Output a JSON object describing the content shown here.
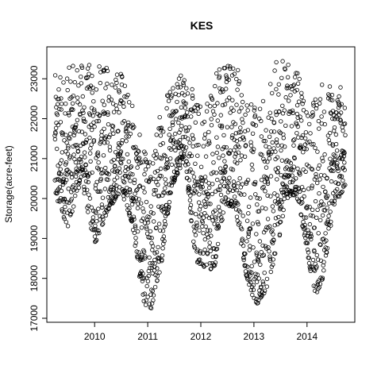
{
  "chart_data": {
    "type": "scatter",
    "title": "KES",
    "xlabel": "",
    "ylabel": "Storage(acre-feet)",
    "xlim": [
      2009.1,
      2014.9
    ],
    "ylim": [
      16900,
      23800
    ],
    "x_ticks": [
      2010,
      2011,
      2012,
      2013,
      2014
    ],
    "x_tick_labels": [
      "2010",
      "2011",
      "2012",
      "2013",
      "2014"
    ],
    "y_ticks": [
      17000,
      18000,
      19000,
      20000,
      21000,
      22000,
      23000
    ],
    "y_tick_labels": [
      "17000",
      "18000",
      "19000",
      "20000",
      "21000",
      "22000",
      "23000"
    ],
    "grid": false,
    "legend": "none",
    "marker": "open-circle",
    "color": "#000000",
    "x_range": [
      2009.25,
      2014.72
    ],
    "envelope_knots": [
      [
        2009.25,
        20000,
        23100
      ],
      [
        2009.5,
        19300,
        23300
      ],
      [
        2009.75,
        20500,
        23400
      ],
      [
        2010.0,
        18800,
        23400
      ],
      [
        2010.25,
        19700,
        23300
      ],
      [
        2010.5,
        20200,
        23300
      ],
      [
        2010.7,
        19400,
        22500
      ],
      [
        2010.9,
        17500,
        21300
      ],
      [
        2011.05,
        17100,
        21000
      ],
      [
        2011.25,
        18300,
        22400
      ],
      [
        2011.45,
        20300,
        23300
      ],
      [
        2011.7,
        21000,
        23100
      ],
      [
        2011.9,
        18400,
        22600
      ],
      [
        2012.05,
        18300,
        22400
      ],
      [
        2012.25,
        18200,
        23400
      ],
      [
        2012.45,
        19800,
        23500
      ],
      [
        2012.65,
        19800,
        23600
      ],
      [
        2012.85,
        18100,
        22800
      ],
      [
        2013.05,
        17200,
        22200
      ],
      [
        2013.25,
        17800,
        22600
      ],
      [
        2013.45,
        18800,
        23600
      ],
      [
        2013.6,
        20000,
        23500
      ],
      [
        2013.8,
        20100,
        23300
      ],
      [
        2014.0,
        18700,
        22300
      ],
      [
        2014.15,
        17500,
        22700
      ],
      [
        2014.3,
        18000,
        23000
      ],
      [
        2014.5,
        19800,
        22900
      ],
      [
        2014.72,
        20300,
        22900
      ]
    ],
    "point_count": 1900
  }
}
